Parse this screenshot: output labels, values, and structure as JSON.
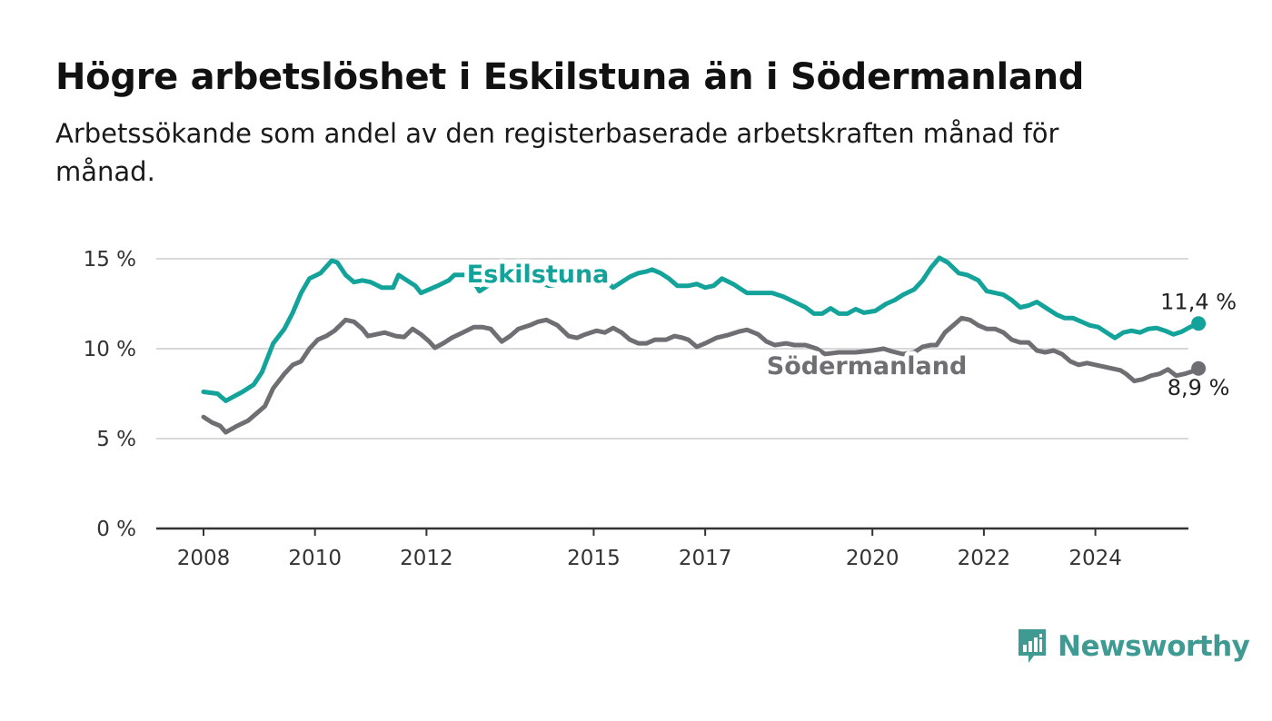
{
  "header": {
    "title": "Högre arbetslöshet i Eskilstuna än i Södermanland",
    "subtitle": "Arbetssökande som andel av den registerbaserade arbetskraften månad för månad."
  },
  "brand": {
    "name": "Newsworthy",
    "color": "#3e9a92",
    "icon": "bar-chart-speech-bubble-icon"
  },
  "chart_data": {
    "type": "line",
    "title": "Högre arbetslöshet i Eskilstuna än i Södermanland",
    "subtitle": "Arbetssökande som andel av den registerbaserade arbetskraften månad för månad.",
    "xlabel": "",
    "ylabel": "",
    "xlim": [
      2007.6,
      2025.0
    ],
    "ylim": [
      0,
      15
    ],
    "x_ticks": [
      2008,
      2010,
      2012,
      2015,
      2017,
      2020,
      2022,
      2024
    ],
    "x_tick_labels": [
      "2008",
      "2010",
      "2012",
      "2015",
      "2017",
      "2020",
      "2022",
      "2024"
    ],
    "y_ticks": [
      0,
      5,
      10,
      15
    ],
    "y_tick_labels": [
      "0 %",
      "5 %",
      "10 %",
      "15 %"
    ],
    "grid": true,
    "legend": "direct labels on lines",
    "series": [
      {
        "name": "Eskilstuna",
        "color": "#13a39a",
        "label_at": [
          2014.0,
          14.2
        ],
        "end_label": "11,4 %",
        "points": [
          [
            2008.0,
            7.6
          ],
          [
            2008.25,
            7.5
          ],
          [
            2008.4,
            7.1
          ],
          [
            2008.7,
            7.6
          ],
          [
            2008.9,
            8.0
          ],
          [
            2009.05,
            8.7
          ],
          [
            2009.25,
            10.3
          ],
          [
            2009.45,
            11.1
          ],
          [
            2009.6,
            12.0
          ],
          [
            2009.75,
            13.1
          ],
          [
            2009.9,
            13.9
          ],
          [
            2010.1,
            14.2
          ],
          [
            2010.3,
            14.9
          ],
          [
            2010.4,
            14.8
          ],
          [
            2010.55,
            14.1
          ],
          [
            2010.7,
            13.7
          ],
          [
            2010.85,
            13.8
          ],
          [
            2011.0,
            13.7
          ],
          [
            2011.2,
            13.4
          ],
          [
            2011.4,
            13.4
          ],
          [
            2011.5,
            14.1
          ],
          [
            2011.65,
            13.8
          ],
          [
            2011.8,
            13.5
          ],
          [
            2011.9,
            13.1
          ],
          [
            2012.05,
            13.3
          ],
          [
            2012.2,
            13.5
          ],
          [
            2012.4,
            13.8
          ],
          [
            2012.5,
            14.1
          ],
          [
            2012.7,
            14.1
          ],
          [
            2012.85,
            13.7
          ],
          [
            2012.95,
            13.2
          ],
          [
            2013.1,
            13.5
          ],
          [
            2013.3,
            13.7
          ],
          [
            2013.6,
            14.0
          ],
          [
            2013.9,
            13.8
          ],
          [
            2014.2,
            13.5
          ],
          [
            2014.4,
            13.6
          ],
          [
            2014.6,
            14.0
          ],
          [
            2014.8,
            14.2
          ],
          [
            2015.0,
            14.0
          ],
          [
            2015.2,
            13.8
          ],
          [
            2015.35,
            13.4
          ],
          [
            2015.5,
            13.7
          ],
          [
            2015.65,
            14.0
          ],
          [
            2015.8,
            14.2
          ],
          [
            2015.95,
            14.3
          ],
          [
            2016.05,
            14.4
          ],
          [
            2016.2,
            14.2
          ],
          [
            2016.35,
            13.9
          ],
          [
            2016.5,
            13.5
          ],
          [
            2016.7,
            13.5
          ],
          [
            2016.85,
            13.6
          ],
          [
            2017.0,
            13.4
          ],
          [
            2017.15,
            13.5
          ],
          [
            2017.3,
            13.9
          ],
          [
            2017.5,
            13.6
          ],
          [
            2017.65,
            13.3
          ],
          [
            2017.75,
            13.1
          ],
          [
            2018.0,
            13.1
          ],
          [
            2018.2,
            13.1
          ],
          [
            2018.4,
            12.9
          ],
          [
            2018.6,
            12.6
          ],
          [
            2018.8,
            12.3
          ],
          [
            2018.95,
            11.95
          ],
          [
            2019.1,
            11.95
          ],
          [
            2019.25,
            12.25
          ],
          [
            2019.4,
            11.95
          ],
          [
            2019.55,
            11.95
          ],
          [
            2019.7,
            12.2
          ],
          [
            2019.85,
            12.0
          ],
          [
            2020.05,
            12.1
          ],
          [
            2020.25,
            12.5
          ],
          [
            2020.4,
            12.7
          ],
          [
            2020.55,
            13.0
          ],
          [
            2020.75,
            13.3
          ],
          [
            2020.9,
            13.8
          ],
          [
            2021.05,
            14.5
          ],
          [
            2021.2,
            15.05
          ],
          [
            2021.35,
            14.8
          ],
          [
            2021.55,
            14.2
          ],
          [
            2021.7,
            14.1
          ],
          [
            2021.9,
            13.8
          ],
          [
            2022.05,
            13.2
          ],
          [
            2022.2,
            13.1
          ],
          [
            2022.35,
            13.0
          ],
          [
            2022.5,
            12.7
          ],
          [
            2022.65,
            12.3
          ],
          [
            2022.8,
            12.4
          ],
          [
            2022.95,
            12.6
          ],
          [
            2023.1,
            12.3
          ],
          [
            2023.3,
            11.9
          ],
          [
            2023.45,
            11.7
          ],
          [
            2023.6,
            11.7
          ],
          [
            2023.75,
            11.5
          ],
          [
            2023.9,
            11.3
          ],
          [
            2024.05,
            11.2
          ],
          [
            2024.2,
            10.9
          ],
          [
            2024.35,
            10.6
          ],
          [
            2024.5,
            10.9
          ],
          [
            2024.65,
            11.0
          ],
          [
            2024.8,
            10.9
          ],
          [
            2024.95,
            11.1
          ],
          [
            2025.1,
            11.15
          ],
          [
            2025.25,
            11.0
          ],
          [
            2025.4,
            10.8
          ],
          [
            2025.55,
            10.95
          ],
          [
            2025.7,
            11.2
          ],
          [
            2025.85,
            11.4
          ]
        ]
      },
      {
        "name": "Södermanland",
        "color": "#6f6e73",
        "label_at": [
          2019.9,
          9.1
        ],
        "end_label": "8,9 %",
        "points": [
          [
            2008.0,
            6.2
          ],
          [
            2008.15,
            5.9
          ],
          [
            2008.3,
            5.7
          ],
          [
            2008.4,
            5.35
          ],
          [
            2008.6,
            5.7
          ],
          [
            2008.8,
            6.0
          ],
          [
            2008.95,
            6.4
          ],
          [
            2009.1,
            6.8
          ],
          [
            2009.25,
            7.8
          ],
          [
            2009.45,
            8.6
          ],
          [
            2009.6,
            9.1
          ],
          [
            2009.75,
            9.3
          ],
          [
            2009.9,
            10.0
          ],
          [
            2010.05,
            10.5
          ],
          [
            2010.2,
            10.7
          ],
          [
            2010.35,
            11.0
          ],
          [
            2010.45,
            11.3
          ],
          [
            2010.55,
            11.6
          ],
          [
            2010.7,
            11.5
          ],
          [
            2010.85,
            11.1
          ],
          [
            2010.95,
            10.7
          ],
          [
            2011.1,
            10.8
          ],
          [
            2011.25,
            10.9
          ],
          [
            2011.45,
            10.7
          ],
          [
            2011.6,
            10.65
          ],
          [
            2011.75,
            11.1
          ],
          [
            2011.9,
            10.8
          ],
          [
            2012.05,
            10.4
          ],
          [
            2012.15,
            10.05
          ],
          [
            2012.3,
            10.3
          ],
          [
            2012.45,
            10.6
          ],
          [
            2012.65,
            10.9
          ],
          [
            2012.85,
            11.2
          ],
          [
            2013.0,
            11.2
          ],
          [
            2013.15,
            11.1
          ],
          [
            2013.35,
            10.4
          ],
          [
            2013.5,
            10.7
          ],
          [
            2013.65,
            11.1
          ],
          [
            2013.85,
            11.3
          ],
          [
            2014.0,
            11.5
          ],
          [
            2014.15,
            11.6
          ],
          [
            2014.35,
            11.3
          ],
          [
            2014.55,
            10.7
          ],
          [
            2014.7,
            10.6
          ],
          [
            2014.85,
            10.8
          ],
          [
            2015.05,
            11.0
          ],
          [
            2015.2,
            10.9
          ],
          [
            2015.35,
            11.15
          ],
          [
            2015.5,
            10.9
          ],
          [
            2015.65,
            10.5
          ],
          [
            2015.8,
            10.3
          ],
          [
            2015.95,
            10.3
          ],
          [
            2016.1,
            10.5
          ],
          [
            2016.3,
            10.5
          ],
          [
            2016.45,
            10.7
          ],
          [
            2016.6,
            10.6
          ],
          [
            2016.7,
            10.5
          ],
          [
            2016.85,
            10.1
          ],
          [
            2017.0,
            10.3
          ],
          [
            2017.2,
            10.6
          ],
          [
            2017.4,
            10.75
          ],
          [
            2017.6,
            10.95
          ],
          [
            2017.75,
            11.05
          ],
          [
            2017.95,
            10.8
          ],
          [
            2018.1,
            10.4
          ],
          [
            2018.25,
            10.2
          ],
          [
            2018.45,
            10.3
          ],
          [
            2018.6,
            10.2
          ],
          [
            2018.8,
            10.2
          ],
          [
            2019.0,
            10.0
          ],
          [
            2019.15,
            9.7
          ],
          [
            2019.4,
            9.8
          ],
          [
            2019.7,
            9.8
          ],
          [
            2020.0,
            9.9
          ],
          [
            2020.2,
            10.0
          ],
          [
            2020.35,
            9.85
          ],
          [
            2020.55,
            9.7
          ],
          [
            2020.75,
            9.8
          ],
          [
            2020.9,
            10.1
          ],
          [
            2021.05,
            10.2
          ],
          [
            2021.15,
            10.2
          ],
          [
            2021.3,
            10.9
          ],
          [
            2021.45,
            11.3
          ],
          [
            2021.6,
            11.7
          ],
          [
            2021.75,
            11.6
          ],
          [
            2021.9,
            11.3
          ],
          [
            2022.05,
            11.1
          ],
          [
            2022.2,
            11.1
          ],
          [
            2022.35,
            10.9
          ],
          [
            2022.5,
            10.5
          ],
          [
            2022.65,
            10.35
          ],
          [
            2022.8,
            10.35
          ],
          [
            2022.95,
            9.9
          ],
          [
            2023.1,
            9.8
          ],
          [
            2023.25,
            9.9
          ],
          [
            2023.4,
            9.7
          ],
          [
            2023.55,
            9.3
          ],
          [
            2023.7,
            9.1
          ],
          [
            2023.85,
            9.2
          ],
          [
            2024.0,
            9.1
          ],
          [
            2024.15,
            9.0
          ],
          [
            2024.3,
            8.9
          ],
          [
            2024.45,
            8.8
          ],
          [
            2024.55,
            8.6
          ],
          [
            2024.7,
            8.2
          ],
          [
            2024.85,
            8.3
          ],
          [
            2025.0,
            8.5
          ],
          [
            2025.15,
            8.6
          ],
          [
            2025.3,
            8.85
          ],
          [
            2025.45,
            8.5
          ],
          [
            2025.6,
            8.6
          ],
          [
            2025.75,
            8.75
          ],
          [
            2025.85,
            8.9
          ]
        ]
      }
    ]
  }
}
